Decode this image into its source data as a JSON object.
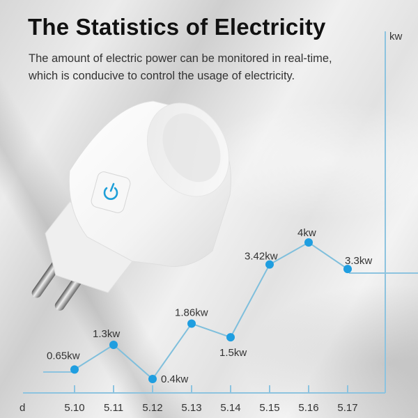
{
  "header": {
    "title": "The Statistics of Electricity",
    "subtitle_line1": "The amount of electric power can be monitored in real-time,",
    "subtitle_line2": "which is conducive to control the usage of electricity."
  },
  "device": {
    "name": "smart-plug",
    "button_icon": "power-icon",
    "accent_color": "#1e9fd8"
  },
  "colors": {
    "line": "#7fbfdc",
    "point": "#1f9ee0",
    "axis": "#8cc3df",
    "text": "#333333"
  },
  "chart_data": {
    "type": "line",
    "title": "The Statistics of Electricity",
    "xlabel": "d",
    "ylabel": "kw",
    "categories": [
      "5.10",
      "5.11",
      "5.12",
      "5.13",
      "5.14",
      "5.15",
      "5.16",
      "5.17"
    ],
    "values": [
      0.65,
      1.3,
      0.4,
      1.86,
      1.5,
      3.42,
      4,
      3.3
    ],
    "data_labels": [
      "0.65kw",
      "1.3kw",
      "0.4kw",
      "1.86kw",
      "1.5kw",
      "3.42kw",
      "4kw",
      "3.3kw"
    ],
    "grid": false,
    "legend": "none"
  }
}
